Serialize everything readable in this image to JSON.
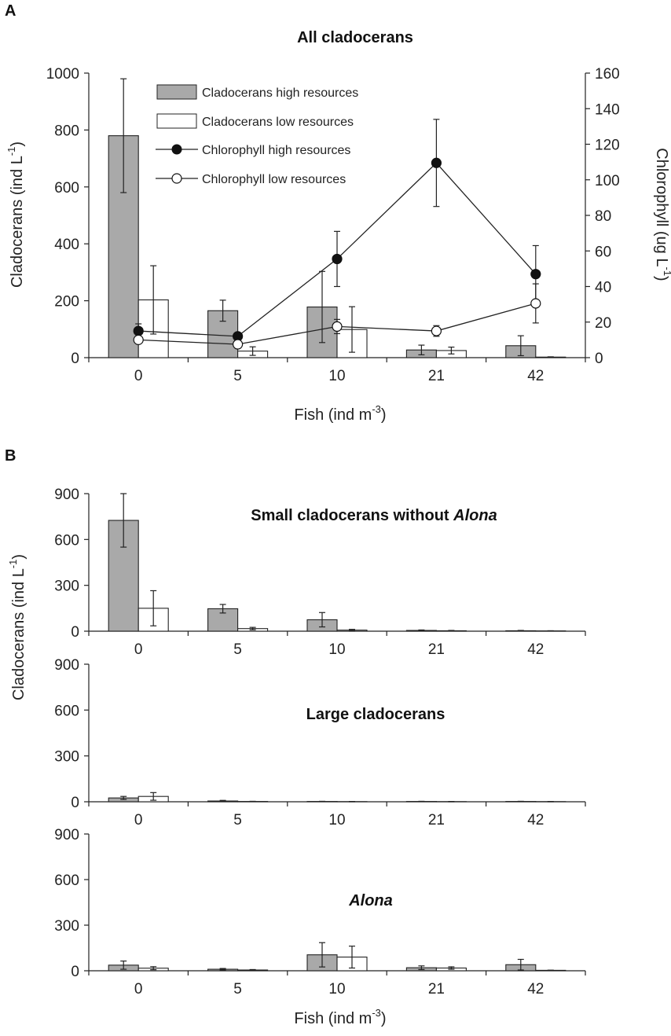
{
  "panels": {
    "a": {
      "letter": "A"
    },
    "b": {
      "letter": "B"
    }
  },
  "colors": {
    "high_bar": "#a9a9a9",
    "low_bar": "#ffffff",
    "bar_stroke": "#222222",
    "axis": "#222222",
    "marker_high": "#111111",
    "marker_low": "#ffffff"
  },
  "chart_data": [
    {
      "id": "A",
      "type": "bar",
      "title": "All cladocerans",
      "xlabel": "Fish (ind m",
      "xlabel_sup": "-3",
      "xlabel_end": ")",
      "ylabel": "Cladocerans (ind L",
      "ylabel_sup": "-1",
      "ylabel_end": ")",
      "y2label": "Chlorophyll (ug L",
      "y2label_sup": "-1",
      "y2label_end": ")",
      "categories": [
        "0",
        "5",
        "10",
        "21",
        "42"
      ],
      "ylim": [
        0,
        1000
      ],
      "yticks": [
        "0",
        "200",
        "400",
        "600",
        "800",
        "1000"
      ],
      "y2lim": [
        0,
        160
      ],
      "y2ticks": [
        "0",
        "20",
        "40",
        "60",
        "80",
        "100",
        "120",
        "140",
        "160"
      ],
      "legend_position": "top-center",
      "series": [
        {
          "name": "Cladocerans high resources",
          "kind": "bar",
          "axis": "left",
          "values": [
            780,
            165,
            178,
            27,
            42
          ],
          "errors": [
            200,
            37,
            125,
            17,
            35
          ]
        },
        {
          "name": "Cladocerans low resources",
          "kind": "bar",
          "axis": "left",
          "values": [
            203,
            23,
            99,
            25,
            2
          ],
          "errors": [
            120,
            15,
            80,
            12,
            1
          ]
        },
        {
          "name": "Chlorophyll high resources",
          "kind": "line",
          "axis": "right",
          "marker": "filled",
          "values": [
            15,
            12,
            55.5,
            109.5,
            47
          ],
          "errors": [
            4,
            2,
            15.5,
            24.5,
            16
          ]
        },
        {
          "name": "Chlorophyll low resources",
          "kind": "line",
          "axis": "right",
          "marker": "open",
          "values": [
            10,
            7.5,
            17.5,
            15,
            30.5
          ],
          "errors": [
            2,
            1.5,
            4,
            3,
            11
          ]
        }
      ]
    },
    {
      "id": "B1",
      "type": "bar",
      "title": "Small cladocerans without ",
      "title_italic": "Alona",
      "categories": [
        "0",
        "5",
        "10",
        "21",
        "42"
      ],
      "ylim": [
        0,
        900
      ],
      "yticks": [
        "0",
        "300",
        "600",
        "900"
      ],
      "series": [
        {
          "values": [
            725,
            147,
            75,
            5,
            3
          ],
          "errors": [
            175,
            28,
            47,
            3,
            2
          ]
        },
        {
          "values": [
            150,
            17,
            7,
            3,
            2
          ],
          "errors": [
            115,
            8,
            5,
            2,
            1
          ]
        }
      ]
    },
    {
      "id": "B2",
      "type": "bar",
      "title": "Large cladocerans",
      "title_italic": "",
      "categories": [
        "0",
        "5",
        "10",
        "21",
        "42"
      ],
      "ylim": [
        0,
        900
      ],
      "yticks": [
        "0",
        "300",
        "600",
        "900"
      ],
      "series": [
        {
          "values": [
            25,
            5,
            2,
            2,
            2
          ],
          "errors": [
            10,
            4,
            1,
            1,
            1
          ]
        },
        {
          "values": [
            35,
            2,
            1,
            1,
            1
          ],
          "errors": [
            25,
            1,
            1,
            1,
            1
          ]
        }
      ]
    },
    {
      "id": "B3",
      "type": "bar",
      "title": "",
      "title_italic": "Alona",
      "categories": [
        "0",
        "5",
        "10",
        "21",
        "42"
      ],
      "ylim": [
        0,
        900
      ],
      "yticks": [
        "0",
        "300",
        "600",
        "900"
      ],
      "series": [
        {
          "values": [
            37,
            10,
            105,
            20,
            40
          ],
          "errors": [
            27,
            5,
            80,
            12,
            35
          ]
        },
        {
          "values": [
            17,
            5,
            90,
            18,
            3
          ],
          "errors": [
            10,
            3,
            72,
            8,
            1
          ]
        }
      ]
    }
  ],
  "panel_b_axes": {
    "ylabel": "Cladocerans (ind L",
    "ylabel_sup": "-1",
    "ylabel_end": ")",
    "xlabel": "Fish (ind m",
    "xlabel_sup": "-3",
    "xlabel_end": ")"
  }
}
